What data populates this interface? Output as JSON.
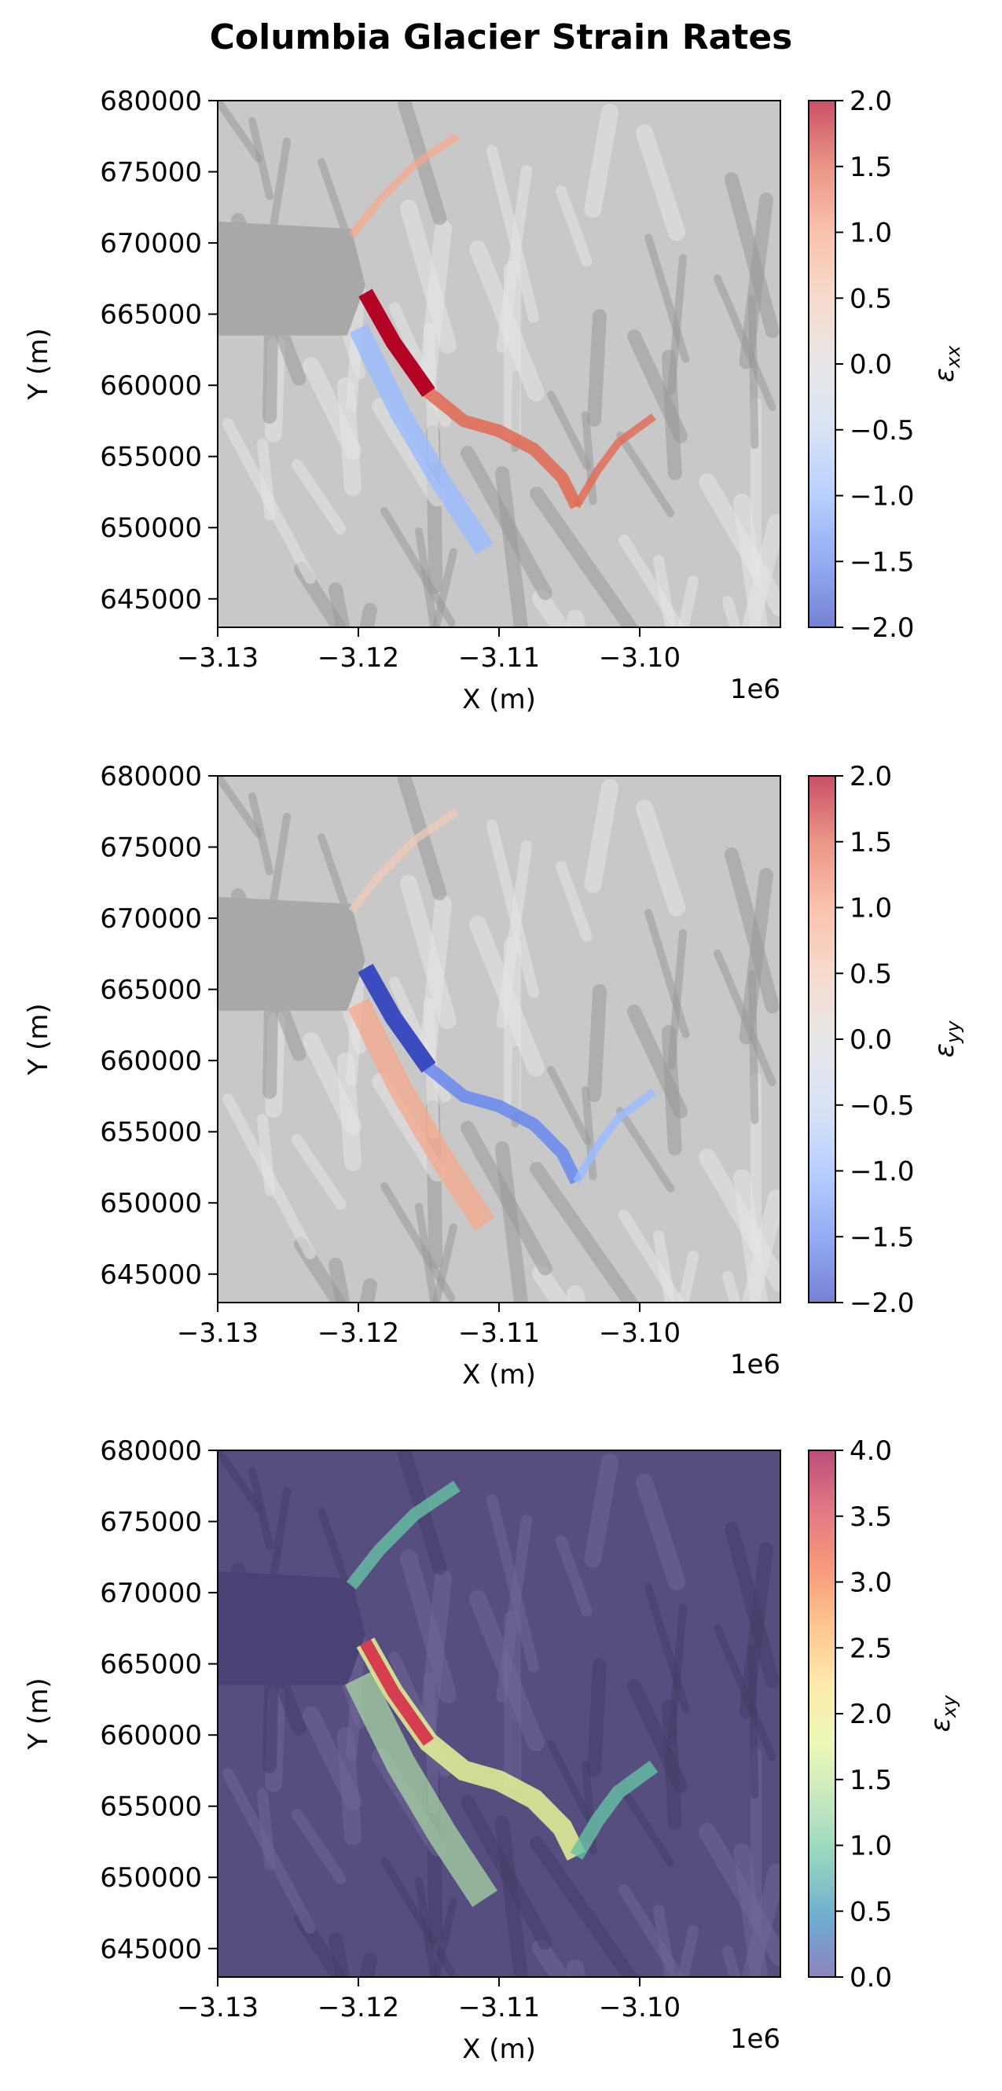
{
  "suptitle": "Columbia Glacier Strain Rates",
  "chart_data": [
    {
      "type": "heatmap",
      "id": "exx",
      "xlabel": "X (m)",
      "ylabel": "Y (m)",
      "x_offset_text": "1e6",
      "x_ticks": [
        "−3.13",
        "−3.12",
        "−3.11",
        "−3.10"
      ],
      "x_tick_values": [
        -3.13,
        -3.12,
        -3.11,
        -3.1
      ],
      "xlim": [
        -3.13,
        -3.09
      ],
      "y_ticks": [
        "645000",
        "650000",
        "655000",
        "660000",
        "665000",
        "670000",
        "675000",
        "680000"
      ],
      "y_tick_values": [
        645000,
        650000,
        655000,
        660000,
        665000,
        670000,
        675000,
        680000
      ],
      "ylim": [
        643000,
        680000
      ],
      "colorbar": {
        "label": "εxx",
        "label_main": "ε",
        "label_sub": "xx",
        "colormap": "coolwarm",
        "alpha": 0.7,
        "range": [
          -2.0,
          2.0
        ],
        "ticks": [
          "−2.0",
          "−1.5",
          "−1.0",
          "−0.5",
          "0.0",
          "0.5",
          "1.0",
          "1.5",
          "2.0"
        ],
        "tick_values": [
          -2.0,
          -1.5,
          -1.0,
          -0.5,
          0.0,
          0.5,
          1.0,
          1.5,
          2.0
        ]
      },
      "background": "hillshade (grey)"
    },
    {
      "type": "heatmap",
      "id": "eyy",
      "xlabel": "X (m)",
      "ylabel": "Y (m)",
      "x_offset_text": "1e6",
      "x_ticks": [
        "−3.13",
        "−3.12",
        "−3.11",
        "−3.10"
      ],
      "x_tick_values": [
        -3.13,
        -3.12,
        -3.11,
        -3.1
      ],
      "xlim": [
        -3.13,
        -3.09
      ],
      "y_ticks": [
        "645000",
        "650000",
        "655000",
        "660000",
        "665000",
        "670000",
        "675000",
        "680000"
      ],
      "y_tick_values": [
        645000,
        650000,
        655000,
        660000,
        665000,
        670000,
        675000,
        680000
      ],
      "ylim": [
        643000,
        680000
      ],
      "colorbar": {
        "label": "εyy",
        "label_main": "ε",
        "label_sub": "yy",
        "colormap": "coolwarm",
        "alpha": 0.7,
        "range": [
          -2.0,
          2.0
        ],
        "ticks": [
          "−2.0",
          "−1.5",
          "−1.0",
          "−0.5",
          "0.0",
          "0.5",
          "1.0",
          "1.5",
          "2.0"
        ],
        "tick_values": [
          -2.0,
          -1.5,
          -1.0,
          -0.5,
          0.0,
          0.5,
          1.0,
          1.5,
          2.0
        ]
      },
      "background": "hillshade (grey)"
    },
    {
      "type": "heatmap",
      "id": "exy",
      "xlabel": "X (m)",
      "ylabel": "Y (m)",
      "x_offset_text": "1e6",
      "x_ticks": [
        "−3.13",
        "−3.12",
        "−3.11",
        "−3.10"
      ],
      "x_tick_values": [
        -3.13,
        -3.12,
        -3.11,
        -3.1
      ],
      "xlim": [
        -3.13,
        -3.09
      ],
      "y_ticks": [
        "645000",
        "650000",
        "655000",
        "660000",
        "665000",
        "670000",
        "675000",
        "680000"
      ],
      "y_tick_values": [
        645000,
        650000,
        655000,
        660000,
        665000,
        670000,
        675000,
        680000
      ],
      "ylim": [
        643000,
        680000
      ],
      "colorbar": {
        "label": "εxy",
        "label_main": "ε",
        "label_sub": "xy",
        "colormap": "Spectral_r",
        "alpha": 0.7,
        "range": [
          0.0,
          4.0
        ],
        "ticks": [
          "0.0",
          "0.5",
          "1.0",
          "1.5",
          "2.0",
          "2.5",
          "3.0",
          "3.5",
          "4.0"
        ],
        "tick_values": [
          0.0,
          0.5,
          1.0,
          1.5,
          2.0,
          2.5,
          3.0,
          3.5,
          4.0
        ]
      },
      "background": "hillshade (dark purple)"
    }
  ]
}
